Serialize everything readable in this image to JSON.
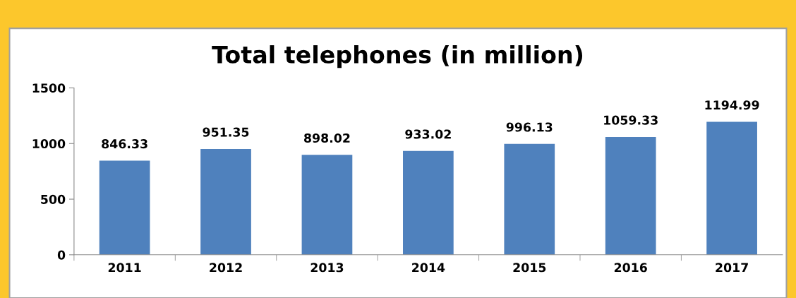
{
  "chart_data": {
    "type": "bar",
    "title": "Total telephones (in million)",
    "categories": [
      "2011",
      "2012",
      "2013",
      "2014",
      "2015",
      "2016",
      "2017"
    ],
    "values": [
      846.33,
      951.35,
      898.02,
      933.02,
      996.13,
      1059.33,
      1194.99
    ],
    "color": "#4f81bd",
    "ylim": [
      0,
      1500
    ],
    "yticks": [
      0,
      500,
      1000,
      1500
    ],
    "grid": false,
    "data_labels": true
  }
}
